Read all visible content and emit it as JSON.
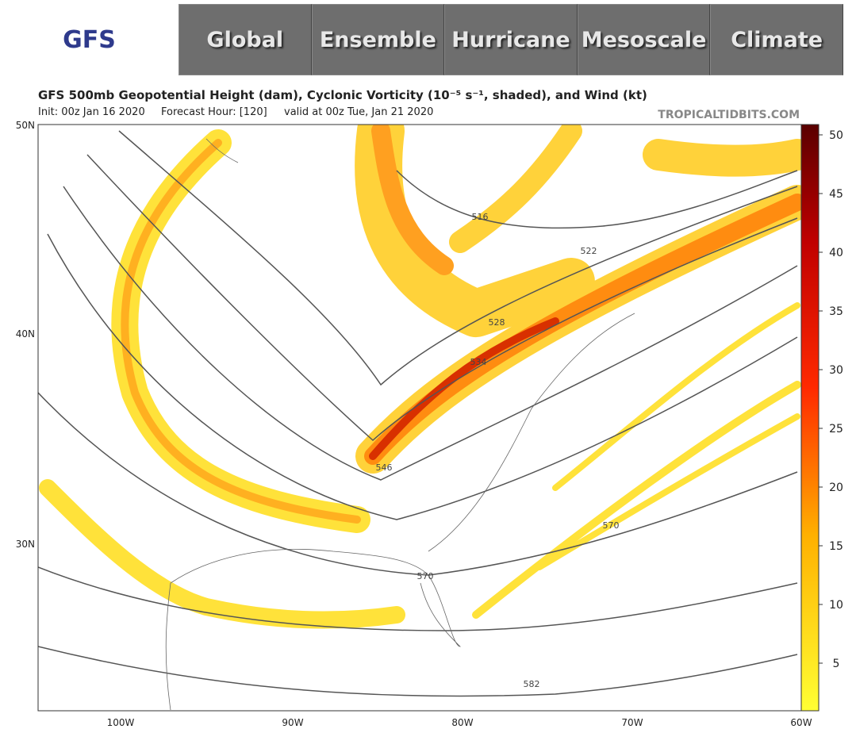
{
  "header": {
    "logo": "GFS",
    "nav": [
      "Global",
      "Ensemble",
      "Hurricane",
      "Mesoscale",
      "Climate"
    ]
  },
  "map": {
    "title": "GFS 500mb Geopotential Height (dam), Cyclonic Vorticity (10⁻⁵ s⁻¹, shaded), and Wind (kt)",
    "init": "Init: 00z Jan 16 2020",
    "forecast_hour": "Forecast Hour: [120]",
    "valid": "valid at 00z Tue, Jan 21 2020",
    "credit": "TROPICALTIDBITS.COM",
    "lat_labels": [
      "50N",
      "40N",
      "30N"
    ],
    "lon_labels": [
      "100W",
      "90W",
      "80W",
      "70W",
      "60W"
    ],
    "contour_labels": [
      "516",
      "522",
      "528",
      "534",
      "546",
      "570",
      "570",
      "582"
    ],
    "colorbar_ticks": [
      5,
      10,
      15,
      20,
      25,
      30,
      35,
      40,
      45,
      50
    ]
  }
}
